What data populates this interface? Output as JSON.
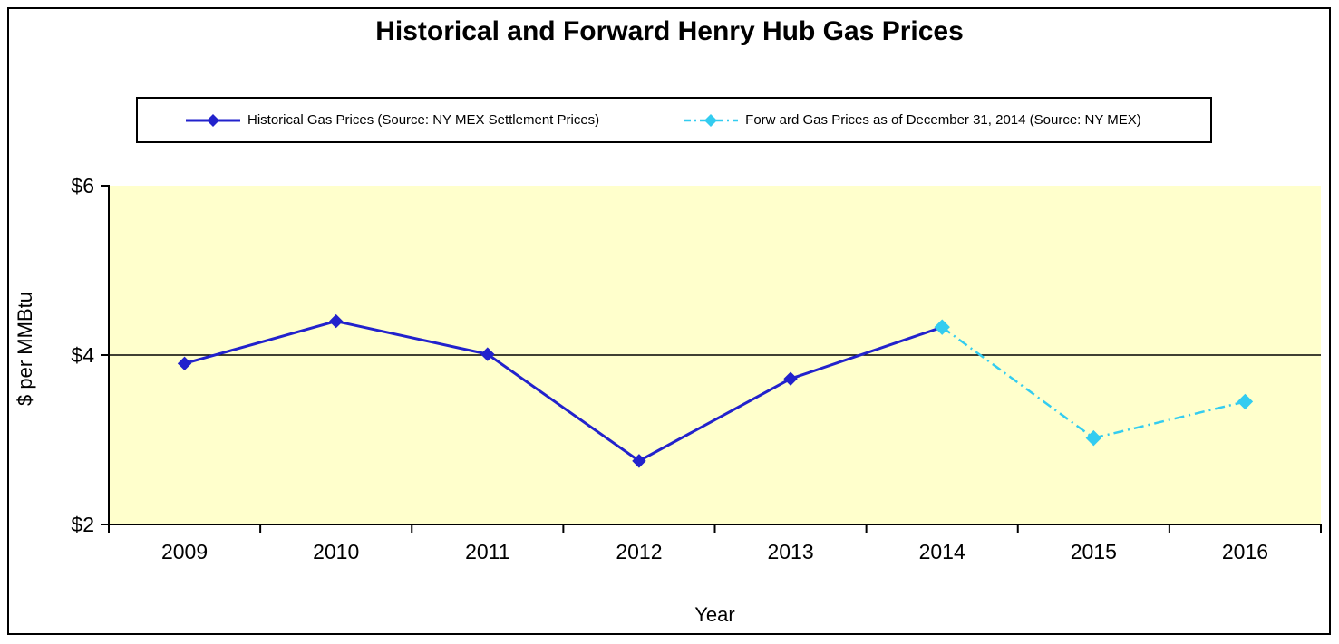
{
  "title": "Historical and Forward Henry Hub Gas Prices",
  "legend": {
    "entries": [
      {
        "key": "historical",
        "label": "Historical Gas Prices (Source: NY MEX Settlement Prices)"
      },
      {
        "key": "forward",
        "label": "Forw ard Gas Prices as of December 31, 2014 (Source: NY MEX)"
      }
    ]
  },
  "axes": {
    "x_title": "Year",
    "y_title": "$ per MMBtu",
    "x_ticks": [
      "2009",
      "2010",
      "2011",
      "2012",
      "2013",
      "2014",
      "2015",
      "2016"
    ],
    "y_ticks": [
      "$2",
      "$4",
      "$6"
    ],
    "y_tick_values": [
      2,
      4,
      6
    ]
  },
  "colors": {
    "historical_line": "#2222CC",
    "forward_line": "#33CCF0",
    "plot_background": "#FFFFCC",
    "axis": "#000000",
    "gridline": "#000000",
    "text": "#000000"
  },
  "chart_data": {
    "type": "line",
    "categories": [
      2009,
      2010,
      2011,
      2012,
      2013,
      2014,
      2015,
      2016
    ],
    "series": [
      {
        "key": "historical",
        "name": "Historical Gas Prices (Source: NY MEX Settlement Prices)",
        "color": "#2222CC",
        "style": "solid",
        "marker": "diamond",
        "values": [
          3.9,
          4.4,
          4.01,
          2.75,
          3.72,
          4.33,
          null,
          null
        ]
      },
      {
        "key": "forward",
        "name": "Forw ard Gas Prices as of December 31, 2014 (Source: NY MEX)",
        "color": "#33CCF0",
        "style": "dash-dot",
        "marker": "diamond",
        "values": [
          null,
          null,
          null,
          null,
          null,
          4.33,
          3.02,
          3.45
        ]
      }
    ],
    "title": "Historical and Forward Henry Hub Gas Prices",
    "xlabel": "Year",
    "ylabel": "$ per MMBtu",
    "ylim": [
      2,
      6
    ],
    "gridlines_y": [
      4
    ],
    "legend_position": "top",
    "plot_background": "#FFFFCC"
  }
}
